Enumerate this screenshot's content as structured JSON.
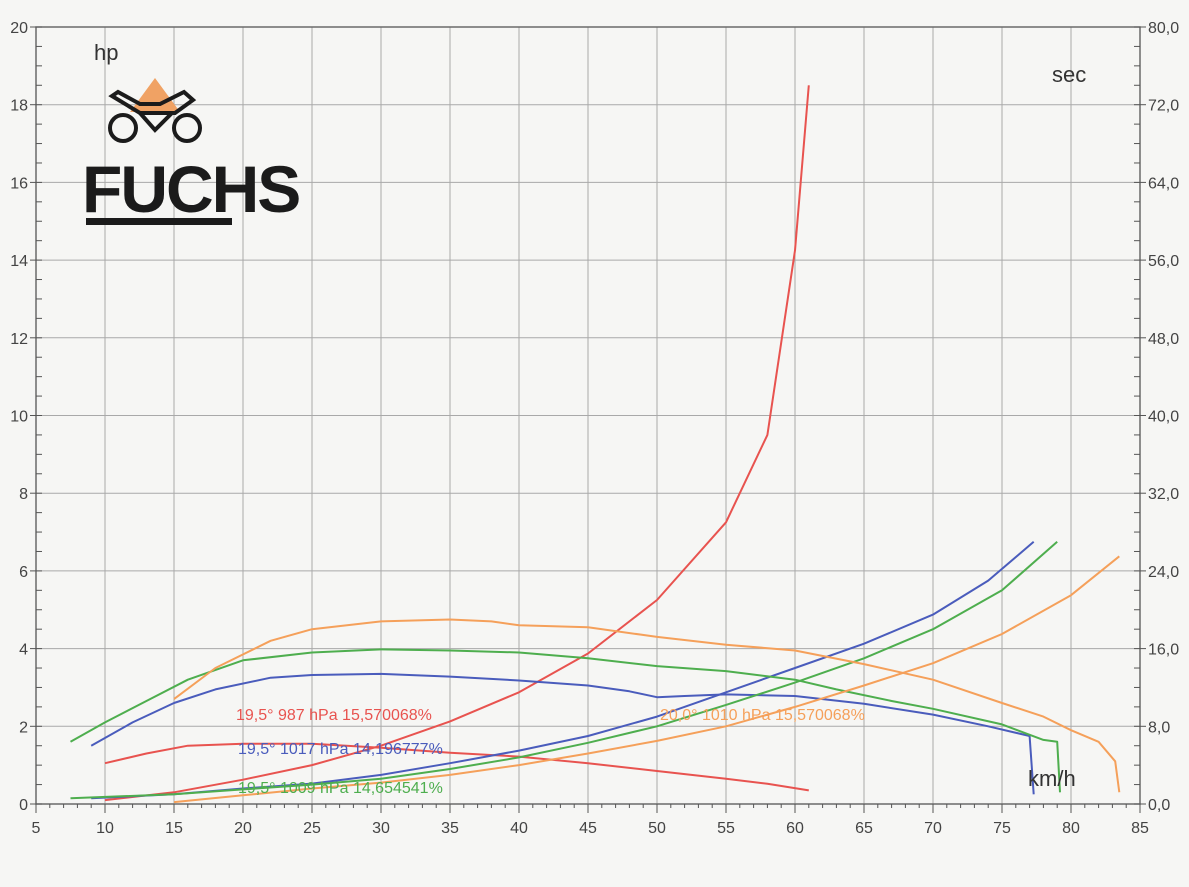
{
  "chart_data": {
    "type": "line",
    "title": "",
    "logo": "FUCHS",
    "xlabel": "km/h",
    "ylabel_left": "hp",
    "ylabel_right": "sec",
    "xlim": [
      5,
      85
    ],
    "ylim_left": [
      0,
      20
    ],
    "ylim_right": [
      0,
      80
    ],
    "x_ticks": [
      5,
      10,
      15,
      20,
      25,
      30,
      35,
      40,
      45,
      50,
      55,
      60,
      65,
      70,
      75,
      80,
      85
    ],
    "y_left_ticks": [
      0,
      2,
      4,
      6,
      8,
      10,
      12,
      14,
      16,
      18,
      20
    ],
    "y_right_ticks": [
      "0,0",
      "8,0",
      "16,0",
      "24,0",
      "32,0",
      "40,0",
      "48,0",
      "56,0",
      "64,0",
      "72,0",
      "80,0"
    ],
    "grid": true,
    "legend_placement": "inside-bottom",
    "series": [
      {
        "name": "19,5°  987 hPa  15,570068%",
        "color": "#e8534f",
        "power_hp": [
          [
            10,
            1.05
          ],
          [
            13,
            1.3
          ],
          [
            16,
            1.5
          ],
          [
            20,
            1.55
          ],
          [
            25,
            1.55
          ],
          [
            30,
            1.45
          ],
          [
            35,
            1.32
          ],
          [
            40,
            1.22
          ],
          [
            45,
            1.05
          ],
          [
            50,
            0.85
          ],
          [
            55,
            0.65
          ],
          [
            58,
            0.52
          ],
          [
            61,
            0.35
          ]
        ],
        "time_sec": [
          [
            10,
            0.4
          ],
          [
            15,
            1.2
          ],
          [
            20,
            2.5
          ],
          [
            25,
            4.0
          ],
          [
            30,
            6.0
          ],
          [
            35,
            8.5
          ],
          [
            40,
            11.5
          ],
          [
            45,
            15.5
          ],
          [
            50,
            21.0
          ],
          [
            55,
            29.0
          ],
          [
            58,
            38.0
          ],
          [
            60,
            57.0
          ],
          [
            61,
            74.0
          ]
        ]
      },
      {
        "name": "19,5°  1017 hPa  14,196777%",
        "color": "#4a5cbc",
        "power_hp": [
          [
            9,
            1.5
          ],
          [
            12,
            2.1
          ],
          [
            15,
            2.6
          ],
          [
            18,
            2.95
          ],
          [
            22,
            3.25
          ],
          [
            25,
            3.32
          ],
          [
            30,
            3.35
          ],
          [
            35,
            3.28
          ],
          [
            40,
            3.18
          ],
          [
            45,
            3.05
          ],
          [
            48,
            2.9
          ],
          [
            50,
            2.75
          ],
          [
            52,
            2.78
          ],
          [
            55,
            2.82
          ],
          [
            60,
            2.78
          ],
          [
            65,
            2.58
          ],
          [
            70,
            2.3
          ],
          [
            74,
            2.0
          ],
          [
            77,
            1.75
          ],
          [
            77.3,
            0.25
          ]
        ],
        "time_sec": [
          [
            9,
            0.6
          ],
          [
            15,
            1.0
          ],
          [
            20,
            1.6
          ],
          [
            25,
            2.1
          ],
          [
            30,
            3.0
          ],
          [
            35,
            4.2
          ],
          [
            40,
            5.5
          ],
          [
            45,
            7.0
          ],
          [
            50,
            9.0
          ],
          [
            55,
            11.5
          ],
          [
            60,
            14.0
          ],
          [
            65,
            16.5
          ],
          [
            70,
            19.5
          ],
          [
            74,
            23.0
          ],
          [
            77.3,
            27.0
          ]
        ]
      },
      {
        "name": "19,5°  1009 hPa  14,654541%",
        "color": "#4eae4e",
        "power_hp": [
          [
            7.5,
            1.6
          ],
          [
            10,
            2.1
          ],
          [
            13,
            2.65
          ],
          [
            16,
            3.2
          ],
          [
            20,
            3.7
          ],
          [
            25,
            3.9
          ],
          [
            30,
            3.98
          ],
          [
            35,
            3.95
          ],
          [
            40,
            3.9
          ],
          [
            45,
            3.75
          ],
          [
            50,
            3.55
          ],
          [
            55,
            3.42
          ],
          [
            60,
            3.2
          ],
          [
            63,
            2.95
          ],
          [
            67,
            2.65
          ],
          [
            70,
            2.45
          ],
          [
            75,
            2.05
          ],
          [
            78,
            1.65
          ],
          [
            79,
            1.6
          ],
          [
            79.2,
            0.3
          ]
        ],
        "time_sec": [
          [
            7.5,
            0.6
          ],
          [
            15,
            1.0
          ],
          [
            20,
            1.5
          ],
          [
            25,
            2.0
          ],
          [
            30,
            2.6
          ],
          [
            35,
            3.6
          ],
          [
            40,
            4.8
          ],
          [
            45,
            6.3
          ],
          [
            50,
            8.0
          ],
          [
            55,
            10.2
          ],
          [
            60,
            12.5
          ],
          [
            65,
            15.0
          ],
          [
            70,
            18.0
          ],
          [
            75,
            22.0
          ],
          [
            79,
            27.0
          ]
        ]
      },
      {
        "name": "20,0°  1010 hPa  15,570068%",
        "color": "#f5a05a",
        "power_hp": [
          [
            15,
            2.7
          ],
          [
            18,
            3.5
          ],
          [
            22,
            4.2
          ],
          [
            25,
            4.5
          ],
          [
            30,
            4.7
          ],
          [
            35,
            4.75
          ],
          [
            38,
            4.7
          ],
          [
            40,
            4.6
          ],
          [
            45,
            4.55
          ],
          [
            50,
            4.3
          ],
          [
            55,
            4.1
          ],
          [
            60,
            3.95
          ],
          [
            65,
            3.6
          ],
          [
            70,
            3.2
          ],
          [
            75,
            2.6
          ],
          [
            78,
            2.25
          ],
          [
            80,
            1.9
          ],
          [
            82,
            1.6
          ],
          [
            83.2,
            1.1
          ],
          [
            83.5,
            0.3
          ]
        ],
        "time_sec": [
          [
            15,
            0.2
          ],
          [
            20,
            0.9
          ],
          [
            25,
            1.6
          ],
          [
            30,
            2.2
          ],
          [
            35,
            3.0
          ],
          [
            40,
            4.0
          ],
          [
            45,
            5.2
          ],
          [
            50,
            6.5
          ],
          [
            55,
            8.0
          ],
          [
            60,
            10.0
          ],
          [
            65,
            12.2
          ],
          [
            70,
            14.5
          ],
          [
            75,
            17.5
          ],
          [
            80,
            21.5
          ],
          [
            83.5,
            25.5
          ]
        ]
      }
    ]
  }
}
